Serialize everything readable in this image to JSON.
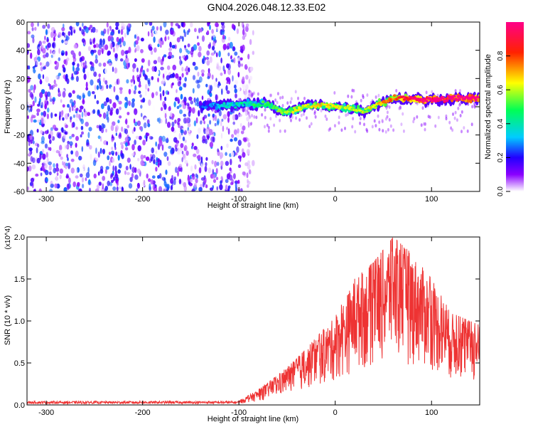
{
  "title": "GN04.2026.048.12.33.E02",
  "chart_data": [
    {
      "type": "heatmap",
      "xlabel": "Height of straight line (km)",
      "ylabel": "Frequency (Hz)",
      "xlim": [
        -320,
        150
      ],
      "ylim": [
        -60,
        60
      ],
      "xticks": [
        -300,
        -200,
        -100,
        0,
        100
      ],
      "yticks": [
        -60,
        -40,
        -20,
        0,
        20,
        40,
        60
      ],
      "colorbar": {
        "label": "Normalized spectral amplitude",
        "range": [
          0.0,
          1.0
        ],
        "ticks": [
          "0.0",
          "0.2",
          "0.4",
          "0.6",
          "0.8"
        ]
      },
      "noise_region_x": [
        -320,
        -85
      ],
      "ridge": {
        "x": [
          -140,
          -110,
          -90,
          -70,
          -55,
          -45,
          -30,
          -15,
          0,
          15,
          30,
          45,
          60,
          75,
          90,
          105,
          120,
          135,
          150
        ],
        "freq": [
          1,
          1,
          2,
          2,
          -4,
          -3,
          1,
          1,
          0,
          -1,
          -3,
          2,
          6,
          6,
          5,
          5,
          6,
          6,
          6
        ],
        "amplitude": [
          0.2,
          0.3,
          0.35,
          0.4,
          0.45,
          0.5,
          0.5,
          0.55,
          0.5,
          0.5,
          0.5,
          0.55,
          0.65,
          0.75,
          0.85,
          0.9,
          0.9,
          0.85,
          0.85
        ]
      }
    },
    {
      "type": "line",
      "xlabel": "Height of straight line (km)",
      "ylabel": "SNR (10 * v/v)",
      "y_multiplier": "(x10^4)",
      "xlim": [
        -320,
        150
      ],
      "ylim": [
        0.0,
        2.0
      ],
      "xticks": [
        -300,
        -200,
        -100,
        0,
        100
      ],
      "yticks": [
        "0.0",
        "0.5",
        "1.0",
        "1.5",
        "2.0"
      ],
      "series": [
        {
          "name": "SNR",
          "color": "#ee3333",
          "envelope_x": [
            -320,
            -100,
            -80,
            -60,
            -40,
            -20,
            0,
            20,
            40,
            60,
            80,
            100,
            120,
            150
          ],
          "envelope_max": [
            0.04,
            0.05,
            0.18,
            0.35,
            0.55,
            0.8,
            1.05,
            1.5,
            1.7,
            2.0,
            1.8,
            1.5,
            1.1,
            0.95
          ]
        }
      ]
    }
  ]
}
